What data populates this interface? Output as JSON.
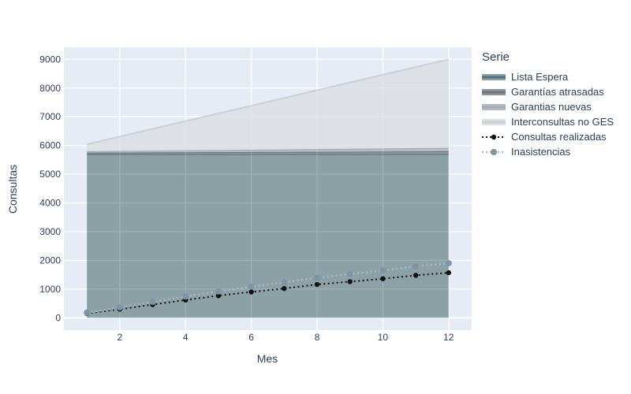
{
  "chart": {
    "legend_title": "Serie",
    "font_color": "#2a3f5f",
    "paper_bg": "#ffffff",
    "plot_bg": "#e5ecf6",
    "grid_color": "#ffffff"
  },
  "chart_data": {
    "type": "area",
    "title": "",
    "xlabel": "Mes",
    "ylabel": "Consultas",
    "x": [
      1,
      2,
      3,
      4,
      5,
      6,
      7,
      8,
      9,
      10,
      11,
      12
    ],
    "x_ticks": [
      2,
      4,
      6,
      8,
      10,
      12
    ],
    "y_ticks": [
      0,
      1000,
      2000,
      3000,
      4000,
      5000,
      6000,
      7000,
      8000,
      9000
    ],
    "xlim": [
      0.3,
      12.7
    ],
    "ylim": [
      -430,
      9420
    ],
    "grid": true,
    "legend_position": "right",
    "series": [
      {
        "name": "Lista Espera",
        "type": "area",
        "stack": true,
        "fill": "#8ca1a6",
        "line": "#527078",
        "line_width": 2,
        "values": [
          5700,
          5700,
          5700,
          5700,
          5700,
          5700,
          5700,
          5700,
          5700,
          5700,
          5700,
          5700
        ]
      },
      {
        "name": "Garantías atrasadas",
        "type": "area",
        "stack": true,
        "fill": "#8f959c",
        "line": "#6e757d",
        "line_width": 2,
        "values": [
          50,
          55,
          59,
          64,
          68,
          73,
          77,
          82,
          86,
          91,
          95,
          100
        ]
      },
      {
        "name": "Garantias nuevas",
        "type": "area",
        "stack": true,
        "fill": "#b6bbc1",
        "line": "#a5aab1",
        "line_width": 2,
        "values": [
          50,
          56,
          62,
          69,
          75,
          81,
          88,
          94,
          100,
          107,
          113,
          120
        ]
      },
      {
        "name": "Interconsultas no GES",
        "type": "area",
        "stack": true,
        "fill": "#dde0e4",
        "line": "#ccd0d5",
        "line_width": 2,
        "values": [
          240,
          500,
          760,
          1015,
          1275,
          1530,
          1790,
          2050,
          2310,
          2565,
          2825,
          3080
        ]
      },
      {
        "name": "Consultas realizadas",
        "type": "line",
        "dash": "dot",
        "line": "#111111",
        "line_width": 2,
        "marker": "#111111",
        "marker_size": 3.2,
        "values": [
          150,
          300,
          460,
          620,
          770,
          900,
          1020,
          1160,
          1260,
          1360,
          1480,
          1570
        ]
      },
      {
        "name": "Inasistencias",
        "type": "line",
        "dash": "dot",
        "line": "#a9b9c8",
        "line_width": 2.5,
        "marker": "#7e93a6",
        "marker_size": 4,
        "values": [
          180,
          365,
          555,
          745,
          920,
          1085,
          1235,
          1395,
          1525,
          1650,
          1790,
          1900
        ]
      }
    ]
  }
}
